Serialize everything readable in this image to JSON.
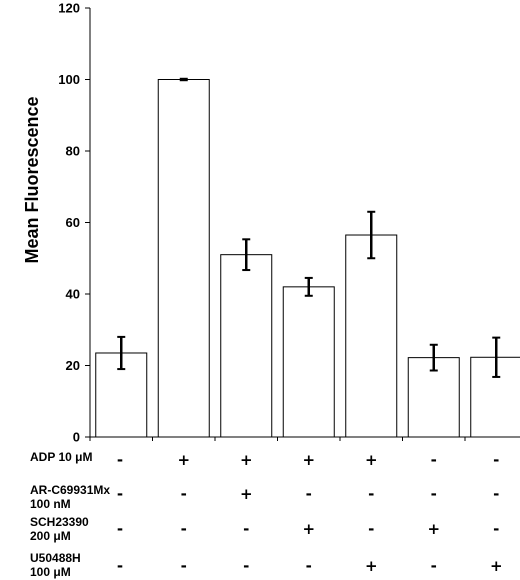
{
  "chart_data": {
    "type": "bar",
    "ylabel": "Mean Fluorescence",
    "xlabel": "",
    "ylim": [
      0,
      120
    ],
    "yticks": [
      "0",
      "20",
      "40",
      "60",
      "80",
      "100",
      "120"
    ],
    "values": [
      23.5,
      100,
      51,
      42,
      56.5,
      22.2,
      22.3
    ],
    "errors": [
      4.5,
      0.2,
      4.3,
      2.5,
      6.5,
      3.6,
      5.5
    ],
    "bar_fill": "#ffffff",
    "bar_stroke": "#000000",
    "conditions": [
      {
        "label_lines": [
          "ADP 10 μM"
        ],
        "signs": [
          "-",
          "+",
          "+",
          "+",
          "+",
          "-",
          "-"
        ]
      },
      {
        "label_lines": [
          "AR-C69931Mx",
          "100 nM"
        ],
        "signs": [
          "-",
          "-",
          "+",
          "-",
          "-",
          "-",
          "-"
        ]
      },
      {
        "label_lines": [
          "SCH23390",
          "200 μM"
        ],
        "signs": [
          "-",
          "-",
          "-",
          "+",
          "-",
          "+",
          "-"
        ]
      },
      {
        "label_lines": [
          "U50488H",
          "100 μM"
        ],
        "signs": [
          "-",
          "-",
          "-",
          "-",
          "+",
          "-",
          "+"
        ]
      }
    ]
  }
}
